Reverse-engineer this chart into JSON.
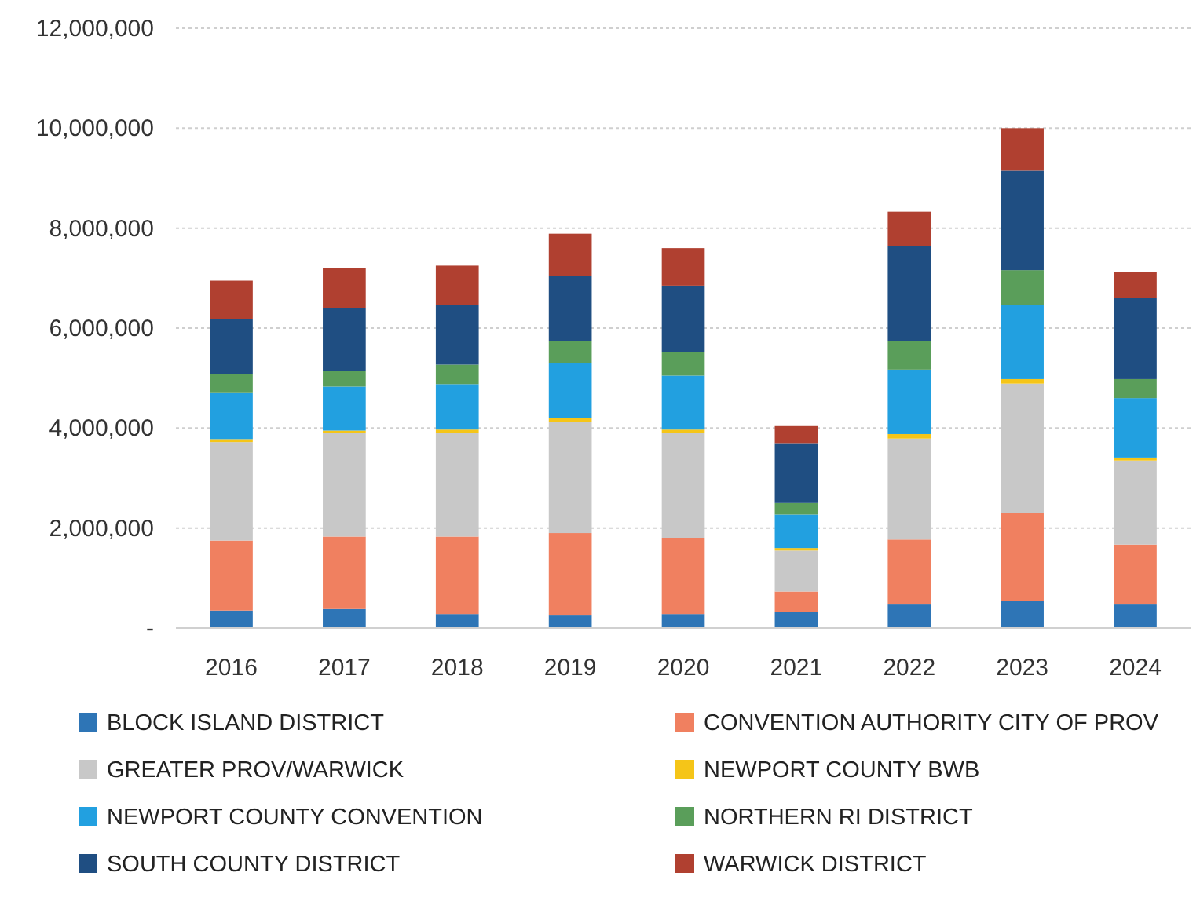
{
  "chart_data": {
    "type": "bar",
    "stacked": true,
    "categories": [
      "2016",
      "2017",
      "2018",
      "2019",
      "2020",
      "2021",
      "2022",
      "2023",
      "2024"
    ],
    "ylim": [
      0,
      12000000
    ],
    "yticks": [
      {
        "value": 0,
        "label": "-"
      },
      {
        "value": 2000000,
        "label": "2,000,000"
      },
      {
        "value": 4000000,
        "label": "4,000,000"
      },
      {
        "value": 6000000,
        "label": "6,000,000"
      },
      {
        "value": 8000000,
        "label": "8,000,000"
      },
      {
        "value": 10000000,
        "label": "10,000,000"
      },
      {
        "value": 12000000,
        "label": "12,000,000"
      }
    ],
    "grid": "y",
    "legend": "bottom",
    "series": [
      {
        "name": "BLOCK ISLAND DISTRICT",
        "color": "#2e75b6",
        "values": [
          350000,
          380000,
          280000,
          250000,
          280000,
          320000,
          470000,
          540000,
          470000
        ]
      },
      {
        "name": "CONVENTION AUTHORITY CITY OF PROV",
        "color": "#f08060",
        "values": [
          1400000,
          1450000,
          1550000,
          1650000,
          1520000,
          410000,
          1300000,
          1760000,
          1200000
        ]
      },
      {
        "name": "GREATER PROV/WARWICK",
        "color": "#c8c8c8",
        "values": [
          1970000,
          2070000,
          2070000,
          2230000,
          2110000,
          820000,
          2020000,
          2590000,
          1680000
        ]
      },
      {
        "name": "NEWPORT COUNTY BWB",
        "color": "#f5c518",
        "values": [
          60000,
          50000,
          70000,
          70000,
          60000,
          50000,
          90000,
          90000,
          60000
        ]
      },
      {
        "name": "NEWPORT COUNTY CONVENTION",
        "color": "#22a0e0",
        "values": [
          920000,
          880000,
          910000,
          1100000,
          1080000,
          670000,
          1290000,
          1490000,
          1190000
        ]
      },
      {
        "name": "NORTHERN RI DISTRICT",
        "color": "#5a9e5a",
        "values": [
          380000,
          320000,
          390000,
          440000,
          470000,
          230000,
          570000,
          690000,
          380000
        ]
      },
      {
        "name": "SOUTH COUNTY DISTRICT",
        "color": "#1f4e82",
        "values": [
          1100000,
          1250000,
          1200000,
          1300000,
          1330000,
          1200000,
          1900000,
          1990000,
          1620000
        ]
      },
      {
        "name": "WARWICK DISTRICT",
        "color": "#b04030",
        "values": [
          770000,
          800000,
          780000,
          850000,
          750000,
          340000,
          690000,
          850000,
          530000
        ]
      }
    ]
  }
}
